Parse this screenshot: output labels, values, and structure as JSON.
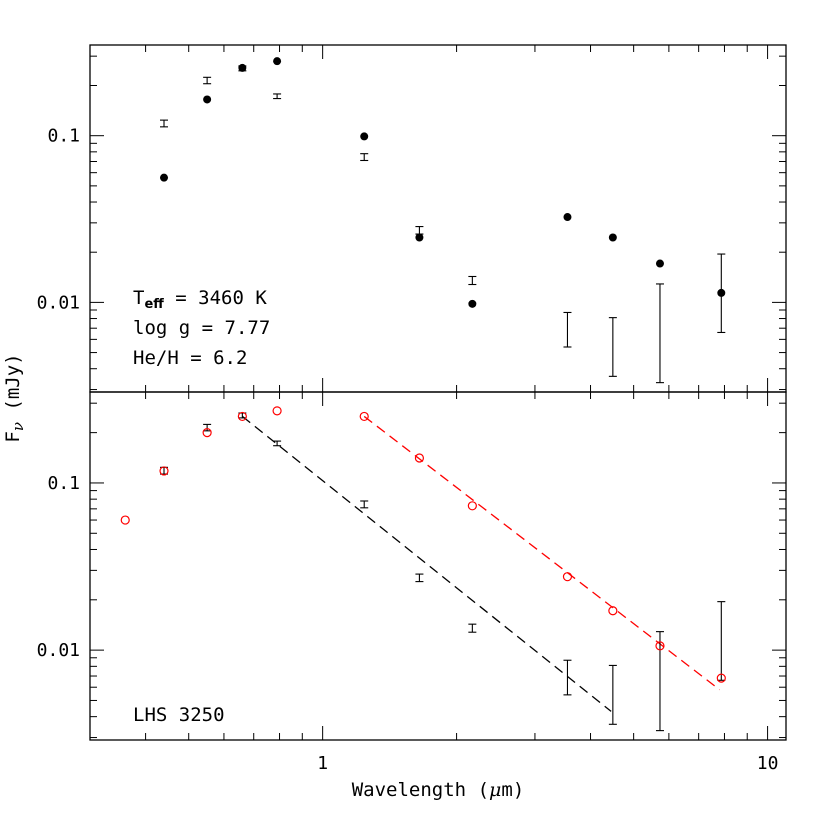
{
  "chart_data": [
    {
      "panel": "top",
      "type": "scatter",
      "xscale": "log",
      "yscale": "log",
      "xlim": [
        0.3,
        11.0
      ],
      "ylim": [
        0.0029,
        0.35
      ],
      "x_ticks": [
        1,
        10
      ],
      "y_ticks": [
        0.01,
        0.1
      ],
      "y_tick_labels": [
        "0.01",
        "0.1"
      ],
      "model_points": [
        {
          "x": 0.44,
          "y": 0.056
        },
        {
          "x": 0.55,
          "y": 0.165
        },
        {
          "x": 0.66,
          "y": 0.255
        },
        {
          "x": 0.79,
          "y": 0.28
        },
        {
          "x": 1.24,
          "y": 0.099
        },
        {
          "x": 1.65,
          "y": 0.0245
        },
        {
          "x": 2.17,
          "y": 0.0098
        },
        {
          "x": 3.55,
          "y": 0.0325
        },
        {
          "x": 4.49,
          "y": 0.0245
        },
        {
          "x": 5.73,
          "y": 0.0171
        },
        {
          "x": 7.87,
          "y": 0.0114
        }
      ],
      "observations": [
        {
          "x": 0.44,
          "y": 0.118,
          "lo": 0.113,
          "hi": 0.124
        },
        {
          "x": 0.55,
          "y": 0.214,
          "lo": 0.205,
          "hi": 0.224
        },
        {
          "x": 0.66,
          "y": 0.253,
          "lo": 0.245,
          "hi": 0.262
        },
        {
          "x": 0.79,
          "y": 0.172,
          "lo": 0.167,
          "hi": 0.178
        },
        {
          "x": 1.24,
          "y": 0.0745,
          "lo": 0.071,
          "hi": 0.078
        },
        {
          "x": 1.65,
          "y": 0.027,
          "lo": 0.0257,
          "hi": 0.0285
        },
        {
          "x": 2.17,
          "y": 0.0135,
          "lo": 0.0128,
          "hi": 0.0143
        },
        {
          "x": 3.55,
          "y": 0.0069,
          "lo": 0.0054,
          "hi": 0.0087
        },
        {
          "x": 4.49,
          "y": 0.0057,
          "lo": 0.0036,
          "hi": 0.0081
        },
        {
          "x": 5.73,
          "y": 0.0065,
          "lo": 0.0033,
          "hi": 0.0129
        },
        {
          "x": 7.87,
          "y": 0.0114,
          "lo": 0.0066,
          "hi": 0.0195
        }
      ],
      "annotations": [
        {
          "main": "T",
          "sub": "eff",
          "rest": " = 3460 K"
        },
        {
          "main": "log g = 7.77"
        },
        {
          "main": "He/H = 6.2"
        }
      ]
    },
    {
      "panel": "bottom",
      "type": "scatter",
      "xscale": "log",
      "yscale": "log",
      "xlim": [
        0.3,
        11.0
      ],
      "ylim": [
        0.0029,
        0.35
      ],
      "x_ticks": [
        1,
        10
      ],
      "x_tick_labels": [
        "1",
        "10"
      ],
      "y_ticks": [
        0.01,
        0.1
      ],
      "y_tick_labels": [
        "0.01",
        "0.1"
      ],
      "model_points": [
        {
          "x": 0.36,
          "y": 0.06
        },
        {
          "x": 0.44,
          "y": 0.118
        },
        {
          "x": 0.55,
          "y": 0.2
        },
        {
          "x": 0.66,
          "y": 0.25
        },
        {
          "x": 0.79,
          "y": 0.27
        },
        {
          "x": 1.24,
          "y": 0.25
        },
        {
          "x": 1.65,
          "y": 0.141
        },
        {
          "x": 2.17,
          "y": 0.073
        },
        {
          "x": 3.55,
          "y": 0.0275
        },
        {
          "x": 4.49,
          "y": 0.0172
        },
        {
          "x": 5.73,
          "y": 0.0106
        },
        {
          "x": 7.87,
          "y": 0.0068
        }
      ],
      "observations": [
        {
          "x": 0.44,
          "y": 0.118,
          "lo": 0.113,
          "hi": 0.124
        },
        {
          "x": 0.55,
          "y": 0.214,
          "lo": 0.205,
          "hi": 0.224
        },
        {
          "x": 0.66,
          "y": 0.253,
          "lo": 0.245,
          "hi": 0.262
        },
        {
          "x": 0.79,
          "y": 0.172,
          "lo": 0.167,
          "hi": 0.178
        },
        {
          "x": 1.24,
          "y": 0.0745,
          "lo": 0.071,
          "hi": 0.078
        },
        {
          "x": 1.65,
          "y": 0.027,
          "lo": 0.0257,
          "hi": 0.0285
        },
        {
          "x": 2.17,
          "y": 0.0135,
          "lo": 0.0128,
          "hi": 0.0143
        },
        {
          "x": 3.55,
          "y": 0.0069,
          "lo": 0.0054,
          "hi": 0.0087
        },
        {
          "x": 4.49,
          "y": 0.0057,
          "lo": 0.0036,
          "hi": 0.0081
        },
        {
          "x": 5.73,
          "y": 0.0065,
          "lo": 0.0033,
          "hi": 0.0129
        },
        {
          "x": 7.87,
          "y": 0.0114,
          "lo": 0.0066,
          "hi": 0.0195
        }
      ],
      "fit_lines": [
        {
          "color": "#000000",
          "x": [
            0.66,
            4.45
          ],
          "y": [
            0.25,
            0.0043
          ]
        },
        {
          "color": "#ff0000",
          "x": [
            1.24,
            7.8
          ],
          "y": [
            0.25,
            0.0058
          ]
        }
      ],
      "annotations": [
        {
          "main": "LHS 3250"
        }
      ]
    }
  ],
  "axes": {
    "xlabel_main": "Wavelength (",
    "xlabel_greek": "μ",
    "xlabel_rest": "m)",
    "ylabel_main": "F",
    "ylabel_sub": "ν",
    "ylabel_rest": " (mJy)"
  },
  "colors": {
    "axis": "#000000",
    "black_series": "#000000",
    "red_series": "#ff0000"
  }
}
